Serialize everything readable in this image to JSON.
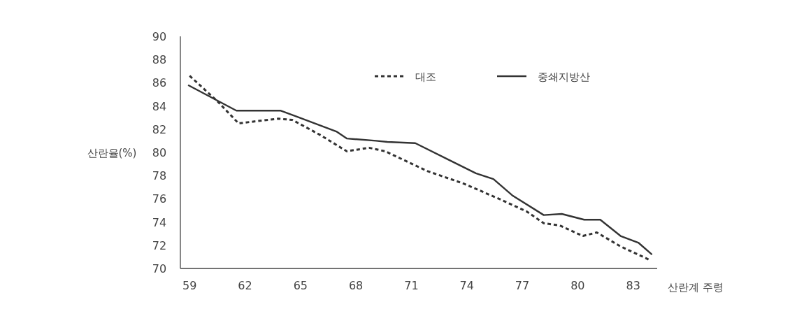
{
  "chart_data": {
    "type": "line",
    "xlabel": "산란계 주령",
    "ylabel": "산란율(%)",
    "xlim": [
      58.5,
      84.3
    ],
    "xticks": [
      59,
      62,
      65,
      68,
      71,
      74,
      77,
      80,
      83
    ],
    "ylim": [
      70,
      90
    ],
    "yticks": [
      70,
      72,
      74,
      76,
      78,
      80,
      82,
      84,
      86,
      88,
      90
    ],
    "grid": false,
    "legend": "top",
    "marker": "none",
    "series": [
      {
        "name": "대조",
        "color": "#333333",
        "line_style": "dashed",
        "x": [
          59.0,
          60.51,
          61.65,
          62.67,
          63.8,
          64.56,
          66.07,
          67.5,
          68.71,
          69.58,
          71.85,
          73.85,
          75.74,
          77.25,
          78.16,
          79.03,
          80.28,
          81.03,
          82.32,
          83.94
        ],
        "values": [
          86.6,
          84.4,
          82.5,
          82.7,
          82.9,
          82.8,
          81.5,
          80.1,
          80.4,
          80.1,
          78.4,
          77.3,
          76.0,
          74.9,
          73.9,
          73.7,
          72.8,
          73.1,
          71.9,
          70.7
        ]
      },
      {
        "name": "중쇄지방산",
        "color": "#333333",
        "line_style": "solid",
        "x": [
          58.92,
          61.53,
          63.91,
          64.78,
          66.94,
          67.5,
          69.09,
          69.7,
          71.21,
          73.1,
          74.49,
          75.44,
          76.46,
          78.16,
          79.14,
          80.35,
          81.22,
          82.32,
          83.3,
          84.02
        ],
        "values": [
          85.8,
          83.6,
          83.6,
          83.1,
          81.8,
          81.2,
          81.0,
          80.9,
          80.8,
          79.3,
          78.2,
          77.7,
          76.3,
          74.6,
          74.7,
          74.2,
          74.2,
          72.8,
          72.2,
          71.2
        ]
      }
    ]
  }
}
